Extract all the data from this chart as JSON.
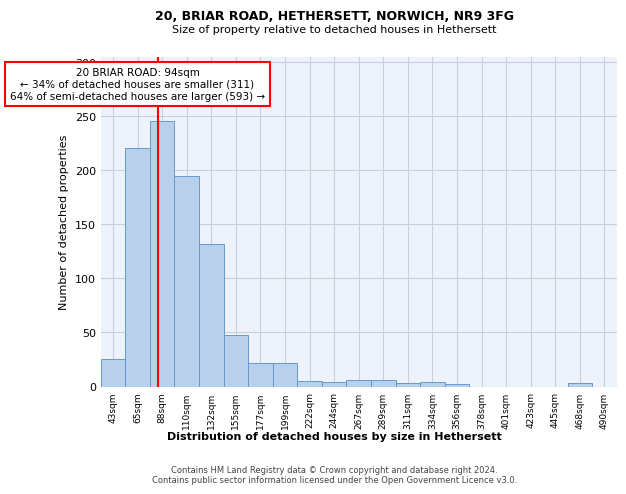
{
  "title1": "20, BRIAR ROAD, HETHERSETT, NORWICH, NR9 3FG",
  "title2": "Size of property relative to detached houses in Hethersett",
  "xlabel": "Distribution of detached houses by size in Hethersett",
  "ylabel": "Number of detached properties",
  "bin_labels": [
    "43sqm",
    "65sqm",
    "88sqm",
    "110sqm",
    "132sqm",
    "155sqm",
    "177sqm",
    "199sqm",
    "222sqm",
    "244sqm",
    "267sqm",
    "289sqm",
    "311sqm",
    "334sqm",
    "356sqm",
    "378sqm",
    "401sqm",
    "423sqm",
    "445sqm",
    "468sqm",
    "490sqm"
  ],
  "bar_values": [
    25,
    220,
    245,
    195,
    132,
    48,
    22,
    22,
    5,
    4,
    6,
    6,
    3,
    4,
    2,
    0,
    0,
    0,
    0,
    3,
    0
  ],
  "bar_color": "#b8d0ec",
  "bar_edge_color": "#6699cc",
  "vline_position": 2,
  "property_line_label": "20 BRIAR ROAD: 94sqm",
  "annotation_line1": "← 34% of detached houses are smaller (311)",
  "annotation_line2": "64% of semi-detached houses are larger (593) →",
  "vline_color": "red",
  "footer_line1": "Contains HM Land Registry data © Crown copyright and database right 2024.",
  "footer_line2": "Contains public sector information licensed under the Open Government Licence v3.0.",
  "bg_color": "#eef2fb",
  "grid_color": "#c8cfe0",
  "ylim": [
    0,
    305
  ],
  "yticks": [
    0,
    50,
    100,
    150,
    200,
    250,
    300
  ]
}
